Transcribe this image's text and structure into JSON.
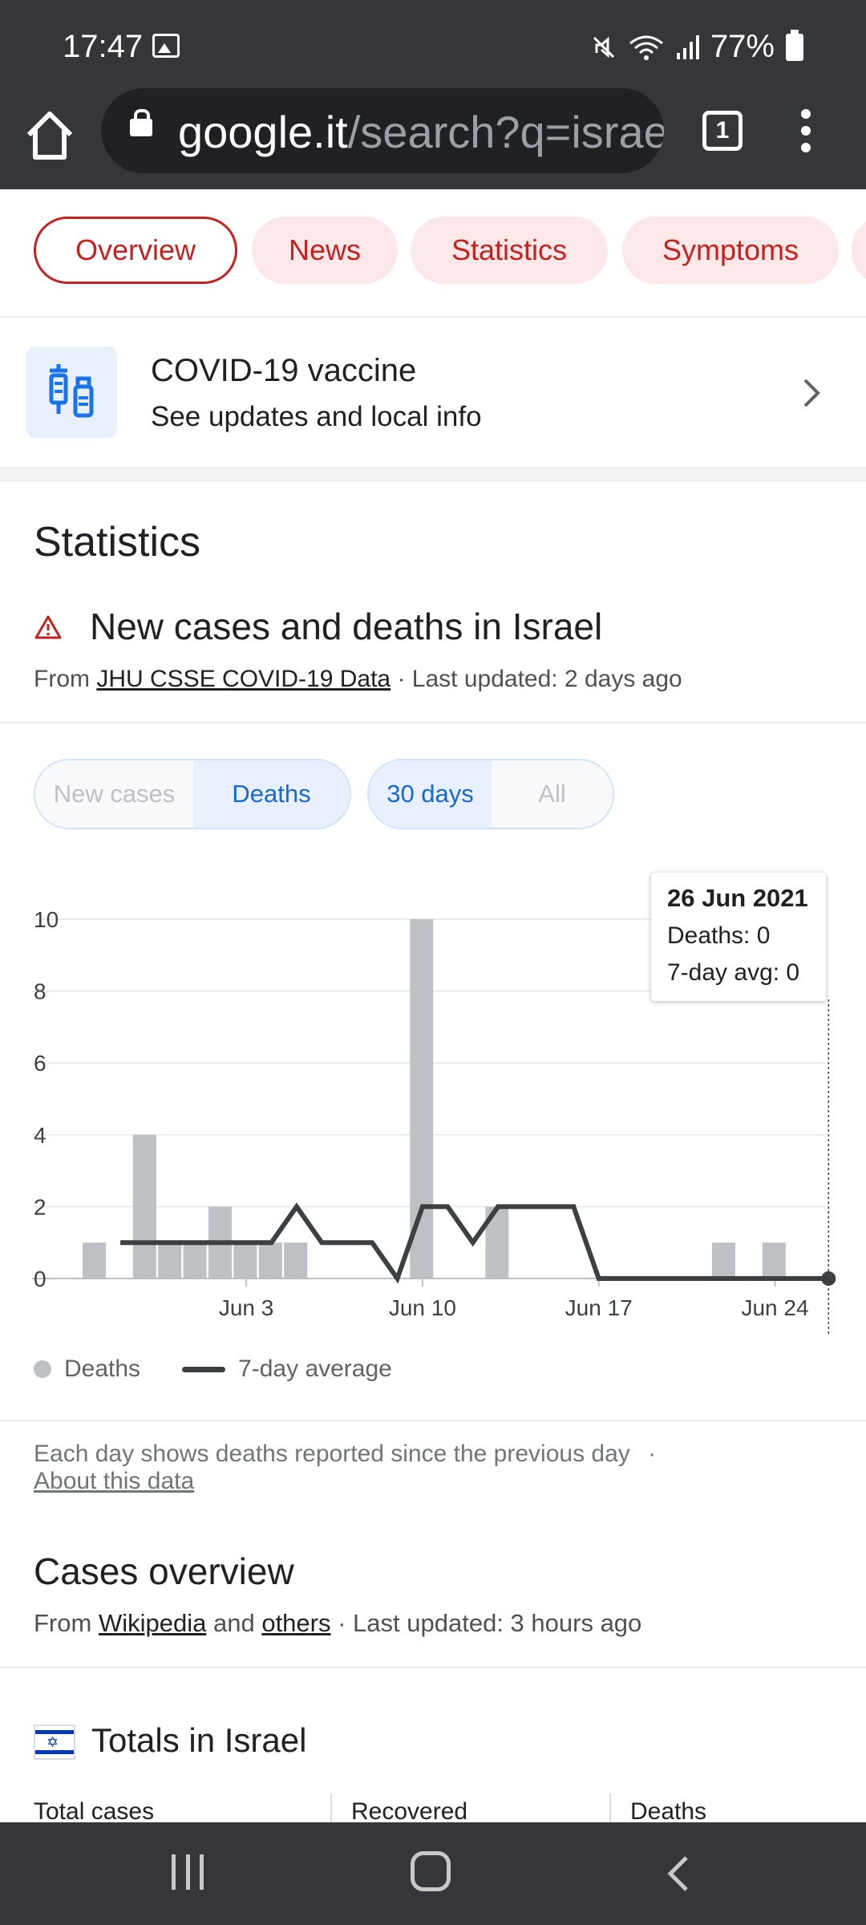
{
  "status_bar": {
    "time": "17:47",
    "battery": "77%"
  },
  "browser": {
    "url_host": "google.it",
    "url_path": "/search?q=israe",
    "tab_count": "1"
  },
  "chips": [
    "Overview",
    "News",
    "Statistics",
    "Symptoms"
  ],
  "vaccine": {
    "title": "COVID-19 vaccine",
    "subtitle": "See updates and local info"
  },
  "statistics": {
    "heading": "Statistics",
    "chart_heading": "New cases and deaths in Israel",
    "source_prefix": "From",
    "source_link": "JHU CSSE COVID-19 Data",
    "source_suffix": "· Last updated: 2 days ago",
    "toggle_metric": [
      "New cases",
      "Deaths"
    ],
    "toggle_range": [
      "30 days",
      "All"
    ]
  },
  "tooltip": {
    "date": "26 Jun 2021",
    "deaths": "Deaths: 0",
    "avg": "7-day avg: 0"
  },
  "chart_data": {
    "type": "bar",
    "title": "",
    "y_ticks": [
      "0",
      "2",
      "4",
      "6",
      "8",
      "10"
    ],
    "ylim": [
      0,
      10
    ],
    "x_tick_labels": [
      "Jun 3",
      "Jun 10",
      "Jun 17",
      "Jun 24"
    ],
    "x_tick_indices": [
      6,
      13,
      20,
      27
    ],
    "series": [
      {
        "name": "Deaths",
        "type": "bar",
        "values": [
          1,
          0,
          4,
          1,
          1,
          2,
          1,
          1,
          1,
          0,
          0,
          0,
          0,
          10,
          0,
          0,
          2,
          0,
          0,
          0,
          0,
          0,
          0,
          0,
          0,
          1,
          0,
          1,
          0,
          0
        ]
      },
      {
        "name": "7-day average",
        "type": "line",
        "values": [
          null,
          1,
          1,
          1,
          1,
          1,
          1,
          1,
          2,
          1,
          1,
          1,
          0,
          2,
          2,
          1,
          2,
          2,
          2,
          2,
          0,
          0,
          0,
          0,
          0,
          0,
          0,
          0,
          0,
          0
        ]
      }
    ],
    "legend": [
      "Deaths",
      "7-day average"
    ],
    "grid": true
  },
  "note": {
    "text": "Each day shows deaths reported since the previous day",
    "sep": "·",
    "link": "About this data"
  },
  "overview": {
    "heading": "Cases overview",
    "source_prefix": "From",
    "link1": "Wikipedia",
    "and": "and",
    "link2": "others",
    "suffix": "· Last updated: 3 hours ago",
    "totals_heading": "Totals in Israel",
    "columns": [
      "Total cases",
      "Recovered",
      "Deaths"
    ]
  }
}
